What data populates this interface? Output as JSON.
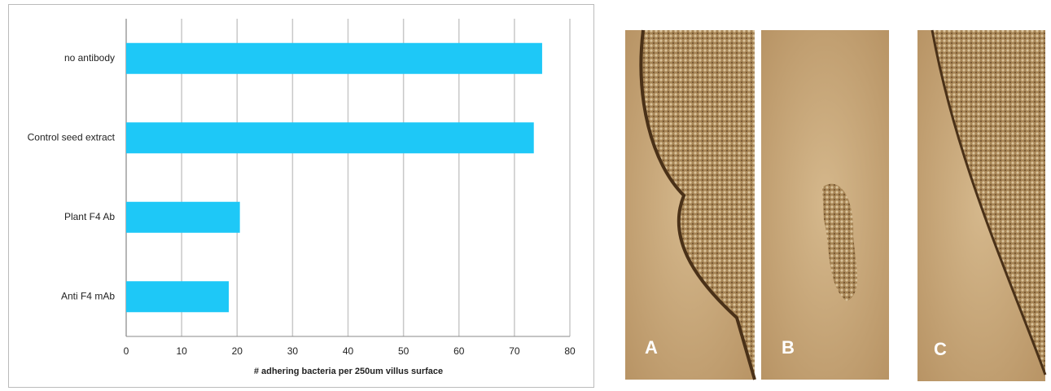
{
  "chart_data": {
    "type": "hbar",
    "categories": [
      "no antibody",
      "Control seed extract",
      "Plant F4 Ab",
      "Anti F4 mAb"
    ],
    "values": [
      75,
      73.5,
      20.5,
      18.5
    ],
    "color": "#1ec8f7",
    "x_label": "# adhering bacteria per 250um villus surface",
    "xlim": [
      0,
      80
    ],
    "xticks": [
      0,
      10,
      20,
      30,
      40,
      50,
      60,
      70,
      80
    ],
    "grid": true
  },
  "image_panels": {
    "labels": [
      "A",
      "B",
      "C"
    ]
  }
}
